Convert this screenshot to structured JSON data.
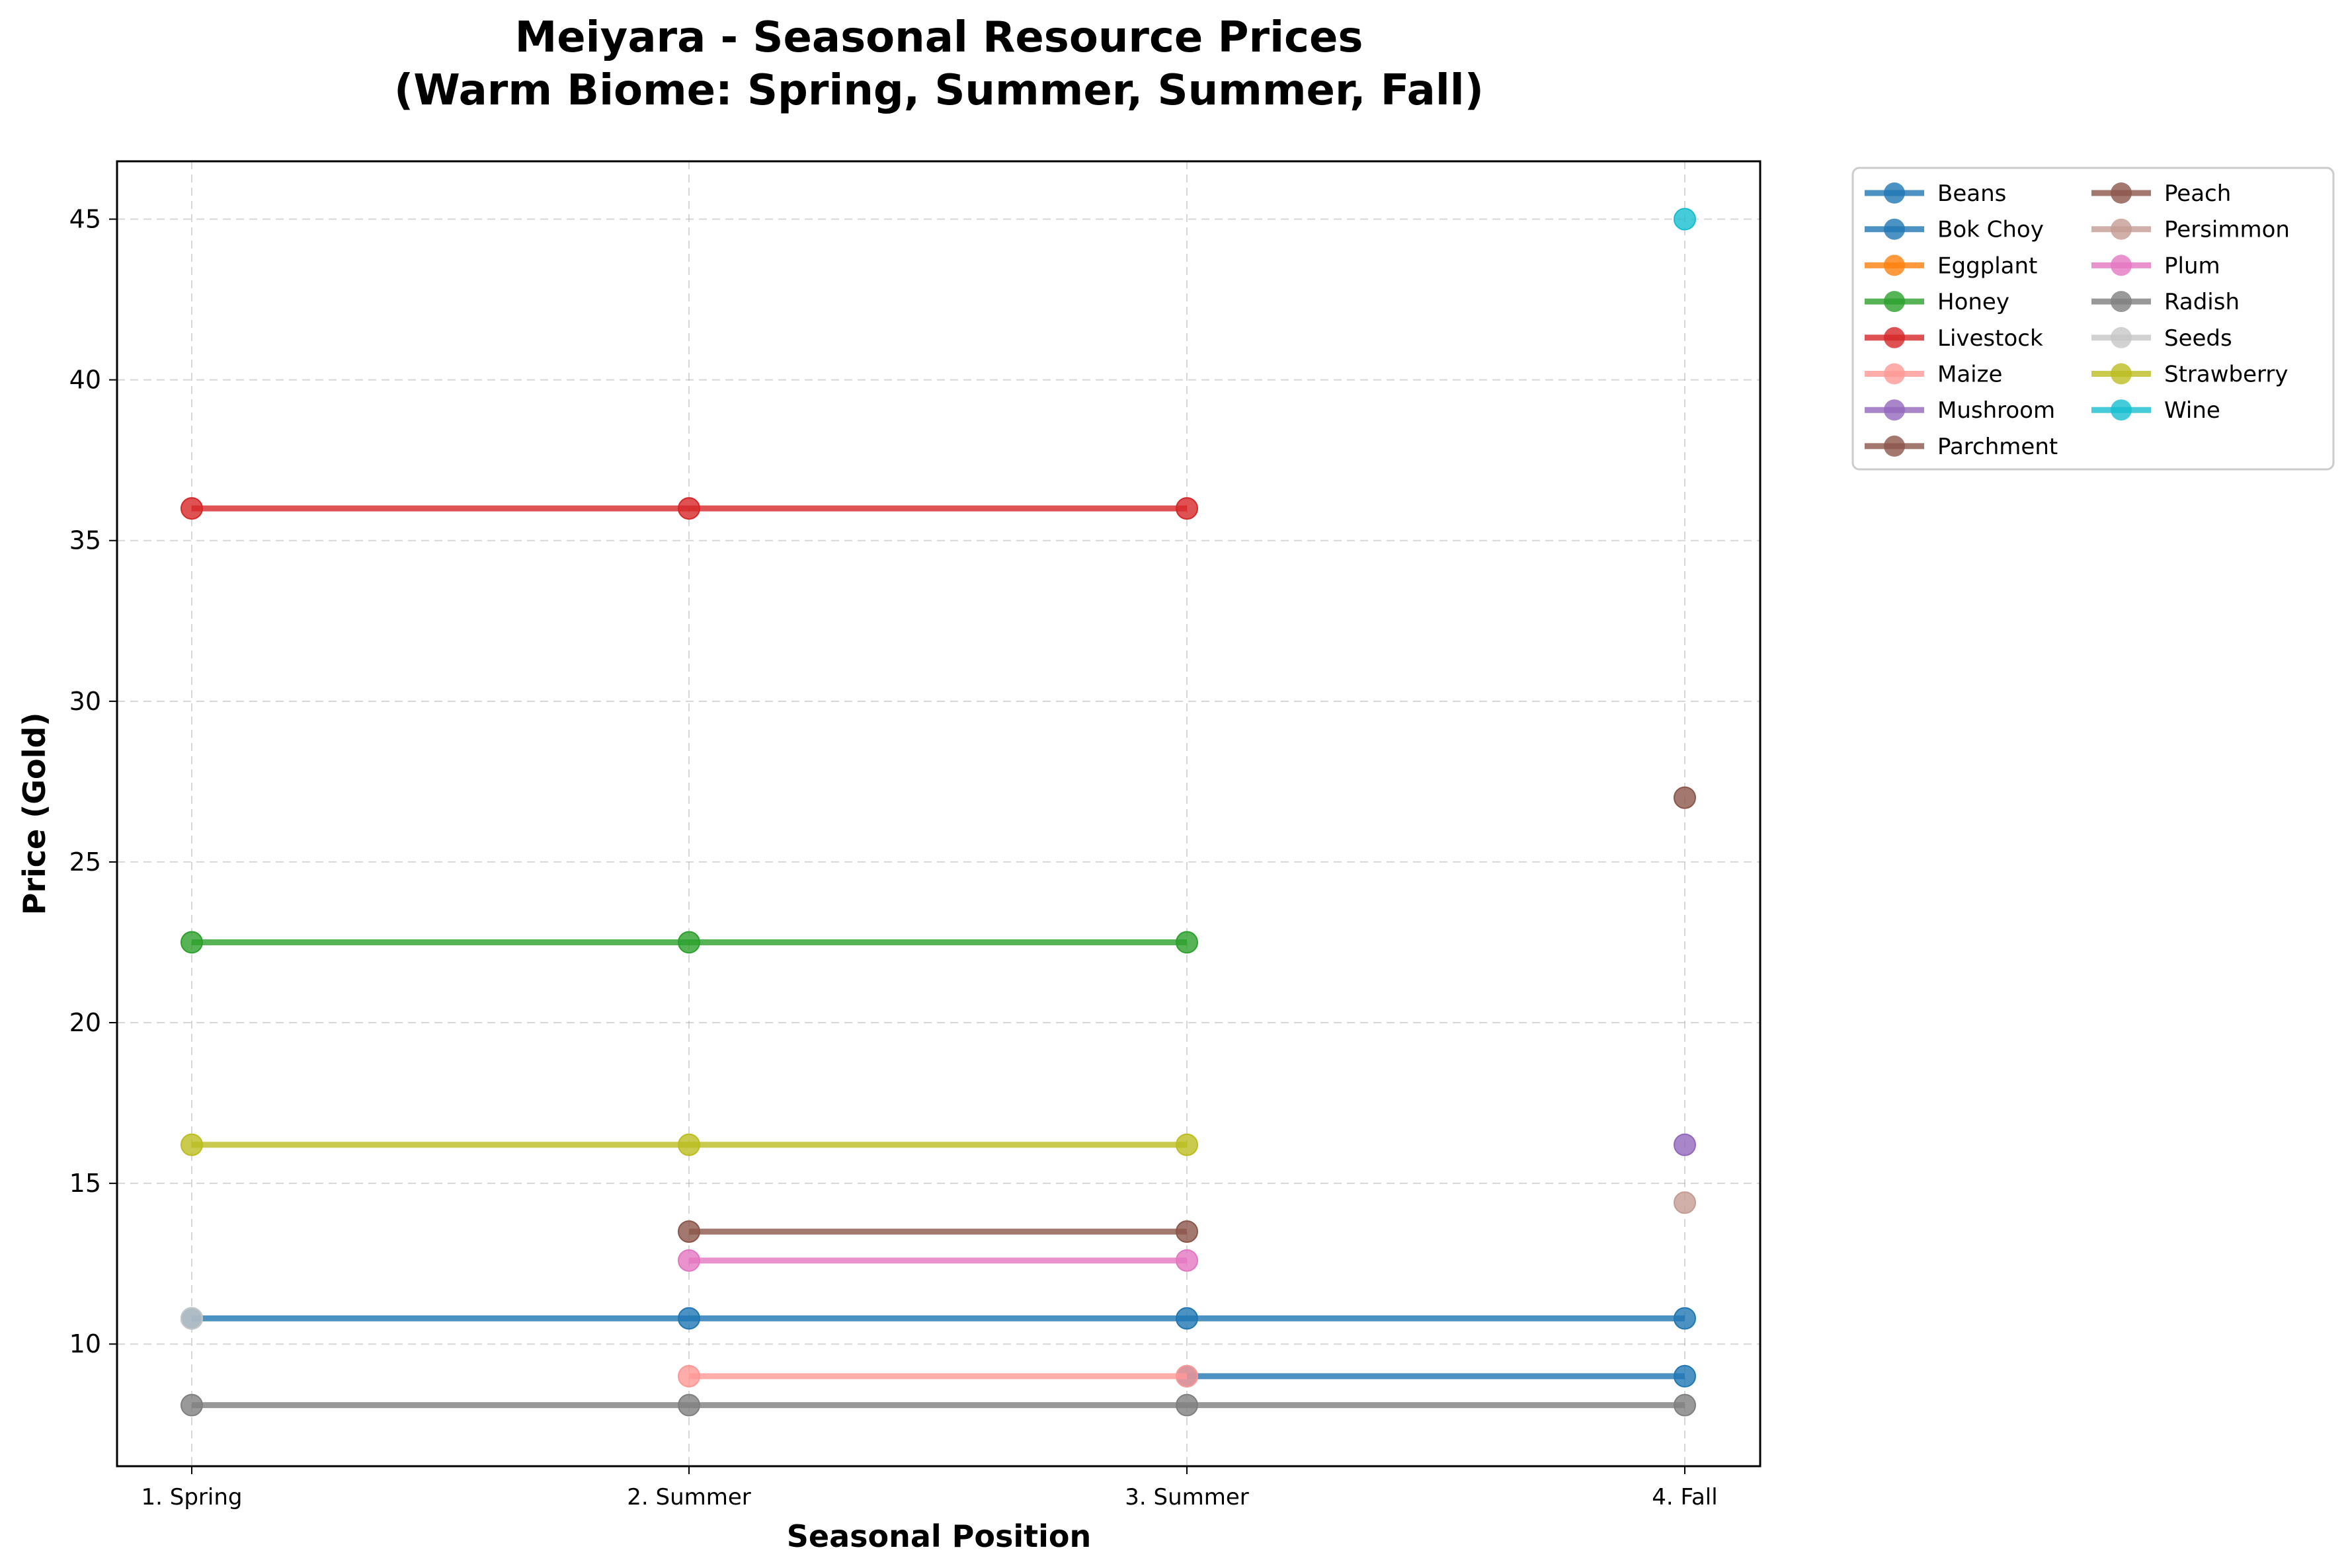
{
  "chart_data": {
    "type": "line",
    "title_line1": "Meiyara - Seasonal Resource Prices",
    "title_line2": "(Warm Biome: Spring, Summer, Summer, Fall)",
    "xlabel": "Seasonal Position",
    "ylabel": "Price (Gold)",
    "categories": [
      "1. Spring",
      "2. Summer",
      "3. Summer",
      "4. Fall"
    ],
    "ylim": [
      6.2,
      46.8
    ],
    "yticks": [
      10,
      15,
      20,
      25,
      30,
      35,
      40,
      45
    ],
    "grid": true,
    "legend_placement": "outside-top-right",
    "series": [
      {
        "name": "Beans",
        "color": "#1f77b4",
        "values": [
          null,
          null,
          9.0,
          9.0
        ]
      },
      {
        "name": "Bok Choy",
        "color": "#1f77b4",
        "values": [
          10.8,
          10.8,
          10.8,
          10.8
        ]
      },
      {
        "name": "Eggplant",
        "color": "#ff7f0e",
        "values": [
          null,
          null,
          null,
          null
        ]
      },
      {
        "name": "Honey",
        "color": "#2ca02c",
        "values": [
          22.5,
          22.5,
          22.5,
          null
        ]
      },
      {
        "name": "Livestock",
        "color": "#d62728",
        "values": [
          36.0,
          36.0,
          36.0,
          null
        ]
      },
      {
        "name": "Maize",
        "color": "#ff9896",
        "values": [
          null,
          9.0,
          9.0,
          null
        ]
      },
      {
        "name": "Mushroom",
        "color": "#9467bd",
        "values": [
          null,
          null,
          null,
          16.2
        ]
      },
      {
        "name": "Parchment",
        "color": "#8c564b",
        "values": [
          null,
          13.5,
          13.5,
          null
        ]
      },
      {
        "name": "Peach",
        "color": "#8c564b",
        "values": [
          null,
          null,
          null,
          27.0
        ]
      },
      {
        "name": "Persimmon",
        "color": "#c49c94",
        "values": [
          null,
          null,
          null,
          14.4
        ]
      },
      {
        "name": "Plum",
        "color": "#e377c2",
        "values": [
          null,
          12.6,
          12.6,
          null
        ]
      },
      {
        "name": "Radish",
        "color": "#7f7f7f",
        "values": [
          8.1,
          8.1,
          8.1,
          8.1
        ]
      },
      {
        "name": "Seeds",
        "color": "#c7c7c7",
        "values": [
          10.8,
          null,
          null,
          null
        ]
      },
      {
        "name": "Strawberry",
        "color": "#bcbd22",
        "values": [
          16.2,
          16.2,
          16.2,
          null
        ]
      },
      {
        "name": "Wine",
        "color": "#17becf",
        "values": [
          null,
          null,
          null,
          45.0
        ]
      }
    ]
  }
}
